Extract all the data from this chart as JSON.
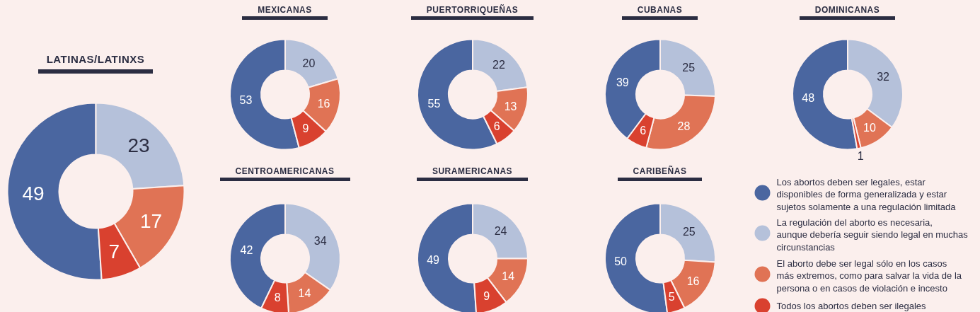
{
  "chart_data": [
    {
      "type": "donut",
      "title": "LATINAS/LATINXS",
      "categories": [
        null,
        null,
        null,
        null
      ],
      "values": [
        49,
        23,
        17,
        7
      ],
      "colors": [
        "#4a66a0",
        "#b5c1da",
        "#e07355",
        "#d9412f"
      ],
      "data_labels": true
    },
    {
      "type": "donut",
      "title": "MEXICANAS",
      "categories": [
        null,
        null,
        null,
        null
      ],
      "values": [
        53,
        20,
        16,
        9
      ],
      "colors": [
        "#4a66a0",
        "#b5c1da",
        "#e07355",
        "#d9412f"
      ],
      "data_labels": true
    },
    {
      "type": "donut",
      "title": "PUERTORRIQUEÑAS",
      "categories": [
        null,
        null,
        null,
        null
      ],
      "values": [
        55,
        22,
        13,
        6
      ],
      "colors": [
        "#4a66a0",
        "#b5c1da",
        "#e07355",
        "#d9412f"
      ],
      "data_labels": true
    },
    {
      "type": "donut",
      "title": "CUBANAS",
      "categories": [
        null,
        null,
        null,
        null
      ],
      "values": [
        39,
        25,
        28,
        6
      ],
      "colors": [
        "#4a66a0",
        "#b5c1da",
        "#e07355",
        "#d9412f"
      ],
      "data_labels": true
    },
    {
      "type": "donut",
      "title": "DOMINICANAS",
      "categories": [
        null,
        null,
        null,
        null
      ],
      "values": [
        48,
        32,
        10,
        1
      ],
      "colors": [
        "#4a66a0",
        "#b5c1da",
        "#e07355",
        "#d9412f"
      ],
      "data_labels": true
    },
    {
      "type": "donut",
      "title": "CENTROAMERICANAS",
      "categories": [
        null,
        null,
        null,
        null
      ],
      "values": [
        42,
        34,
        14,
        8
      ],
      "colors": [
        "#4a66a0",
        "#b5c1da",
        "#e07355",
        "#d9412f"
      ],
      "data_labels": true
    },
    {
      "type": "donut",
      "title": "SURAMERICANAS",
      "categories": [
        null,
        null,
        null,
        null
      ],
      "values": [
        49,
        24,
        14,
        9
      ],
      "colors": [
        "#4a66a0",
        "#b5c1da",
        "#e07355",
        "#d9412f"
      ],
      "data_labels": true
    },
    {
      "type": "donut",
      "title": "CARIBEÑAS",
      "categories": [
        "Los abortos deben ser legales, estar disponibles de forma generalizada y estar sujetos solamente a una regulación limitada",
        "La regulación del aborto es necesaria, aunque debería seguir siendo legal en muchas circunstancias",
        "El aborto debe ser legal sólo en los casos más extremos, como para salvar la vida de la persona o en casos de violación e incesto",
        "Todos los abortos deben ser ilegales"
      ],
      "values": [
        50,
        25,
        16,
        5
      ],
      "colors": [
        "#4a66a0",
        "#b5c1da",
        "#e07355",
        "#d9412f"
      ],
      "data_labels": true,
      "legend": "right"
    }
  ]
}
